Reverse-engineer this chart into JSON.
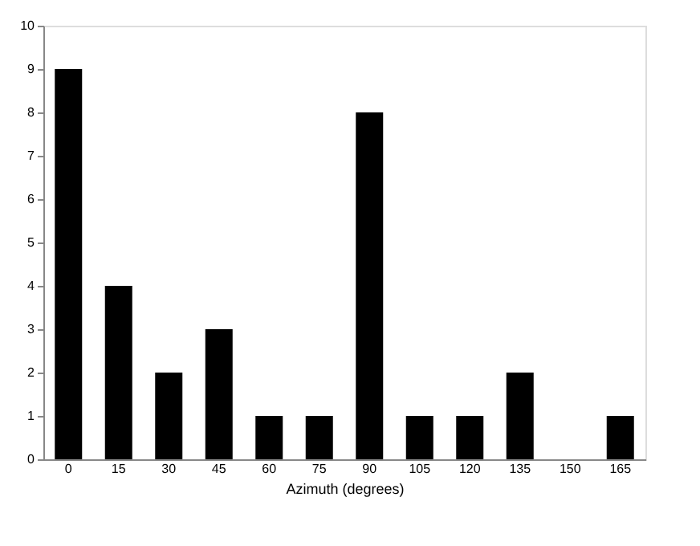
{
  "chart_data": {
    "type": "bar",
    "xlabel": "Azimuth (degrees)",
    "categories": [
      "0",
      "15",
      "30",
      "45",
      "60",
      "75",
      "90",
      "105",
      "120",
      "135",
      "150",
      "165"
    ],
    "values": [
      9,
      4,
      2,
      3,
      1,
      1,
      8,
      1,
      1,
      2,
      0,
      1
    ],
    "color": "#000000",
    "ylim": [
      0,
      10
    ],
    "yticks": [
      0,
      1,
      2,
      3,
      4,
      5,
      6,
      7,
      8,
      9,
      10
    ],
    "grid": false
  }
}
